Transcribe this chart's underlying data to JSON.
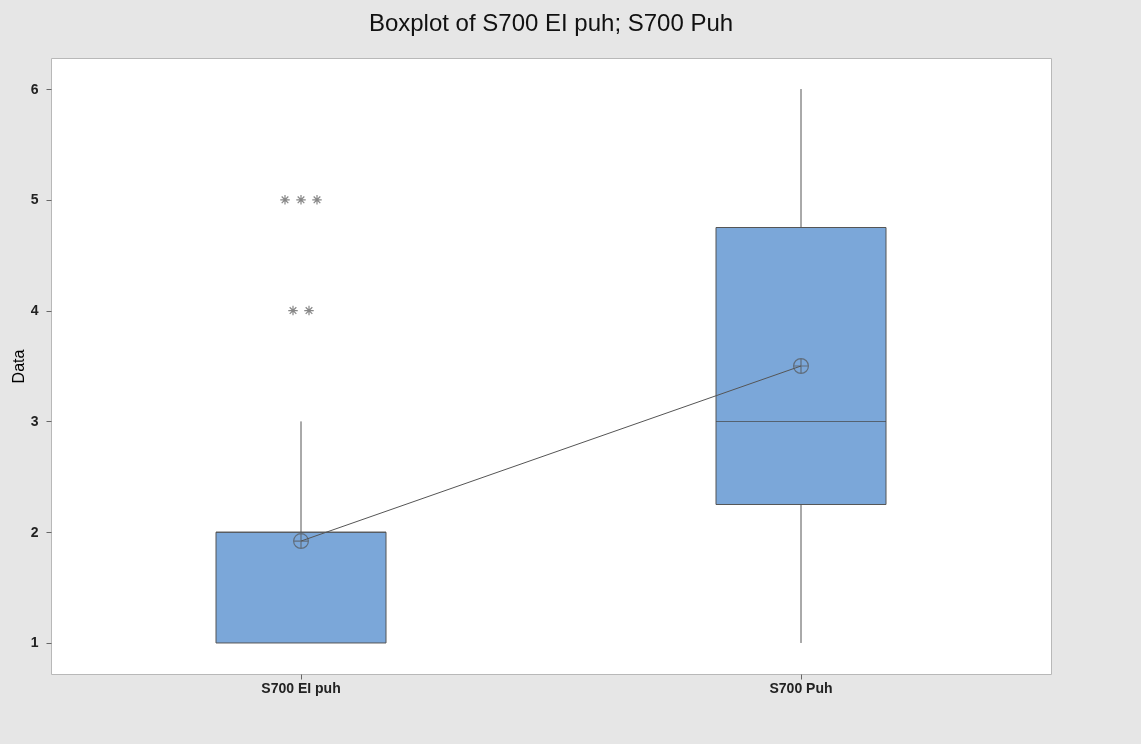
{
  "chart_data": {
    "type": "box",
    "title": "Boxplot of S700 EI puh; S700 Puh",
    "ylabel": "Data",
    "categories": [
      "S700 EI puh",
      "S700 Puh"
    ],
    "boxes": [
      {
        "low": 1,
        "q1": 1,
        "median": 2,
        "q3": 2,
        "high": 3,
        "mean": 1.92,
        "outliers": [
          4,
          4,
          5,
          5,
          5
        ]
      },
      {
        "low": 1,
        "q1": 2.25,
        "median": 3,
        "q3": 4.75,
        "high": 6,
        "mean": 3.5
      }
    ],
    "color": "#7ba7d9",
    "series": [
      {
        "type": "line",
        "color": "#555555",
        "values": [
          1.92,
          3.5
        ]
      }
    ],
    "ylim": [
      0.72,
      6.28
    ],
    "yticks": [
      1,
      2,
      3,
      4,
      5,
      6
    ],
    "grid": false
  }
}
